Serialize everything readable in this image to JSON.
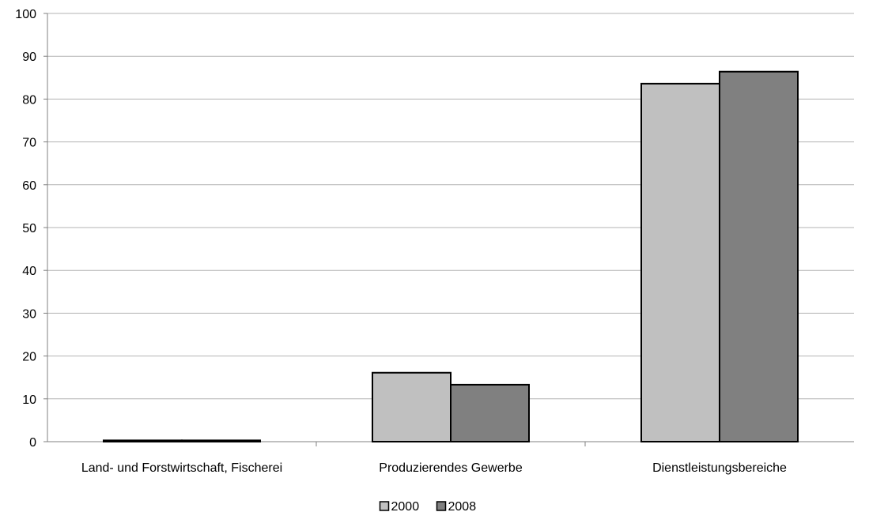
{
  "chart_data": {
    "type": "bar",
    "title": "",
    "xlabel": "",
    "ylabel": "",
    "categories": [
      "Land- und Forstwirtschaft, Fischerei",
      "Produzierendes Gewerbe",
      "Dienstleistungsbereiche"
    ],
    "series": [
      {
        "name": "2000",
        "values": [
          0.3,
          16.1,
          83.6
        ],
        "color": "#c0c0c0"
      },
      {
        "name": "2008",
        "values": [
          0.3,
          13.3,
          86.4
        ],
        "color": "#808080"
      }
    ],
    "ylim": [
      0,
      100
    ],
    "yticks": [
      0,
      10,
      20,
      30,
      40,
      50,
      60,
      70,
      80,
      90,
      100
    ],
    "grid": true,
    "legend_position": "bottom"
  }
}
